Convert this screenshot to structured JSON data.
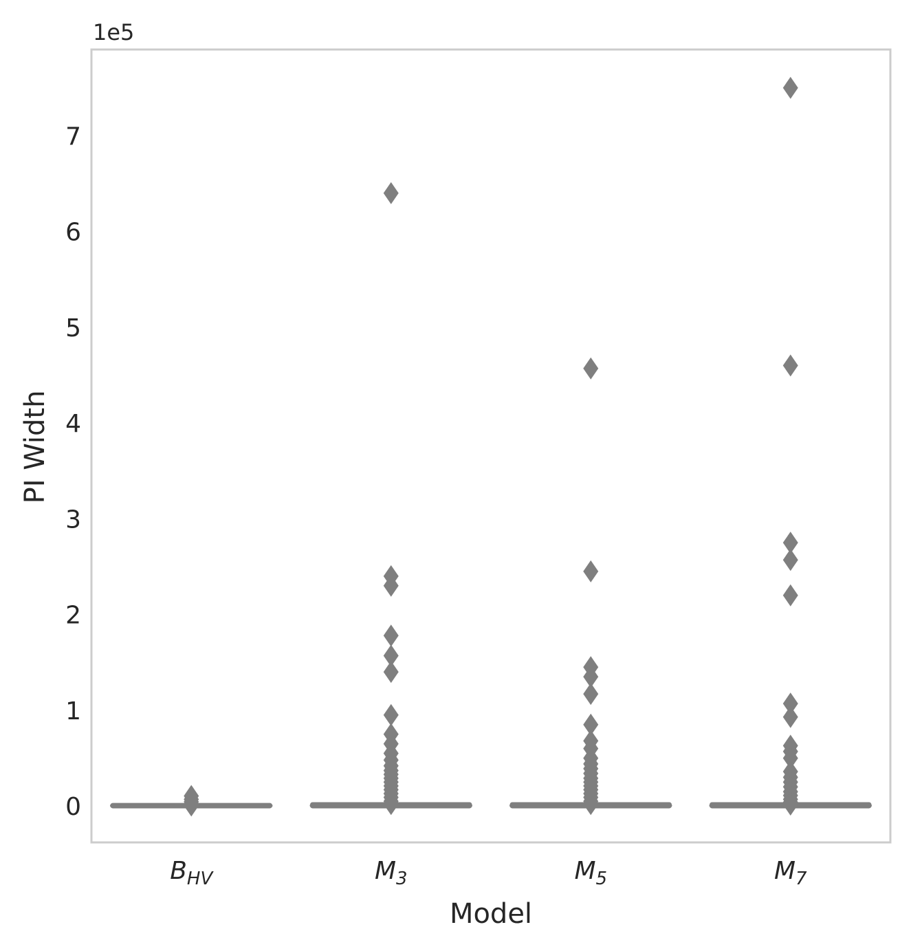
{
  "chart_data": {
    "type": "box",
    "xlabel": "Model",
    "ylabel": "PI Width",
    "y_multiplier_label": "1e5",
    "y_scale_factor": 100000,
    "ylim": [
      -38000,
      790000
    ],
    "yticks": [
      0,
      1,
      2,
      3,
      4,
      5,
      6,
      7
    ],
    "grid": false,
    "colors": {
      "box": "#7f7f7f",
      "frame": "#cccccc",
      "text": "#262626"
    },
    "categories": [
      {
        "base": "B",
        "sub": "HV"
      },
      {
        "base": "M",
        "sub": "3"
      },
      {
        "base": "M",
        "sub": "5"
      },
      {
        "base": "M",
        "sub": "7"
      }
    ],
    "series": [
      {
        "median": 300,
        "q1": 100,
        "q3": 700,
        "whisker_low": 0,
        "whisker_high": 1500,
        "outliers": [
          10500,
          7000,
          4500,
          2500,
          1500,
          500
        ]
      },
      {
        "median": 500,
        "q1": 100,
        "q3": 1500,
        "whisker_low": 0,
        "whisker_high": 3500,
        "outliers": [
          640000,
          240000,
          230000,
          178000,
          157000,
          140000,
          95000,
          75000,
          65000,
          55000,
          48000,
          42000,
          37000,
          33000,
          29000,
          25000,
          21000,
          17000,
          13000,
          9000,
          5000,
          2000
        ]
      },
      {
        "median": 500,
        "q1": 100,
        "q3": 1500,
        "whisker_low": 0,
        "whisker_high": 3500,
        "outliers": [
          457000,
          245000,
          145000,
          135000,
          117000,
          85000,
          68000,
          60000,
          50000,
          44000,
          39000,
          34000,
          29000,
          25000,
          21000,
          17000,
          13000,
          9000,
          5000,
          2000
        ]
      },
      {
        "median": 500,
        "q1": 100,
        "q3": 1500,
        "whisker_low": 0,
        "whisker_high": 3500,
        "outliers": [
          750000,
          460000,
          275000,
          257000,
          220000,
          107000,
          93000,
          63000,
          57000,
          50000,
          36000,
          30000,
          25000,
          20000,
          15000,
          11000,
          7000,
          4000,
          1500
        ]
      }
    ]
  }
}
